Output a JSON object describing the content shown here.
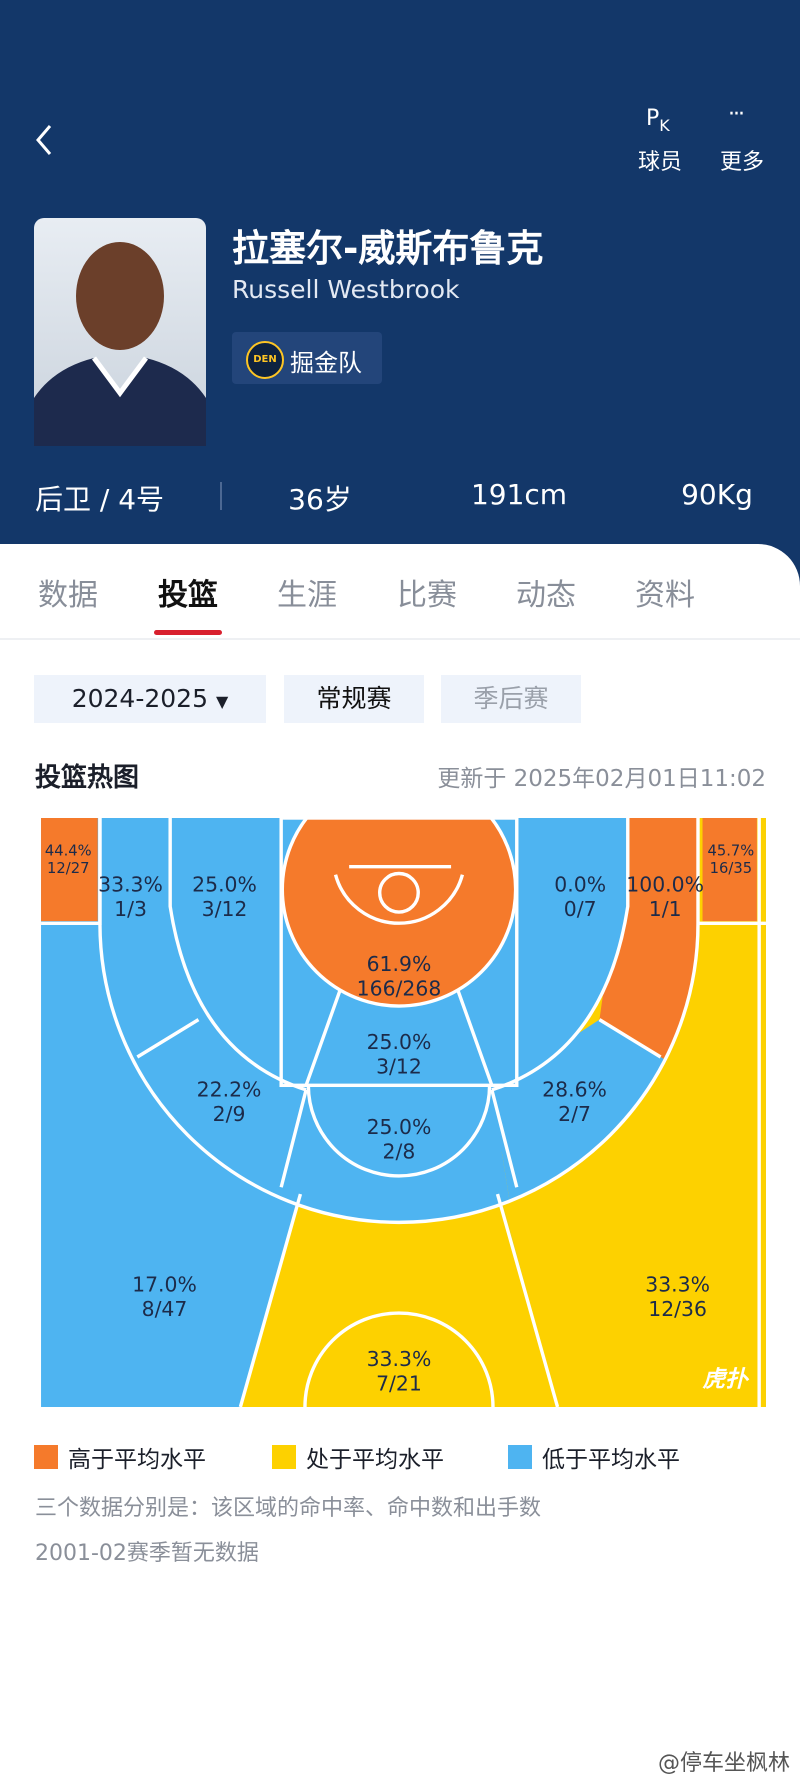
{
  "header": {
    "actions": [
      {
        "icon": [
          "P",
          "K"
        ],
        "label": "球员"
      },
      {
        "icon": "···",
        "label": "更多"
      }
    ]
  },
  "player": {
    "name_cn": "拉塞尔-威斯布鲁克",
    "name_en": "Russell Westbrook",
    "team": "掘金队",
    "team_logo": "DEN",
    "stats": [
      "后卫 / 4号",
      "36岁",
      "191cm",
      "90Kg"
    ]
  },
  "tabs": {
    "items": [
      "数据",
      "投篮",
      "生涯",
      "比赛",
      "动态",
      "资料"
    ],
    "active": 1
  },
  "filters": {
    "season": "2024-2025",
    "types": [
      "常规赛",
      "季后赛"
    ],
    "active_type": 0
  },
  "heatmap": {
    "title": "投篮热图",
    "updated": "更新于 2025年02月01日11:02",
    "court_watermark": "虎扑",
    "zones": [
      {
        "pct": "44.4%",
        "shots": "12/27",
        "color": "#f57a2b"
      },
      {
        "pct": "33.3%",
        "shots": "1/3",
        "color": "#4eb4f1"
      },
      {
        "pct": "25.0%",
        "shots": "3/12",
        "color": "#4eb4f1"
      },
      {
        "pct": "61.9%",
        "shots": "166/268",
        "color": "#f57a2b"
      },
      {
        "pct": "0.0%",
        "shots": "0/7",
        "color": "#4eb4f1"
      },
      {
        "pct": "100.0%",
        "shots": "1/1",
        "color": "#f57a2b"
      },
      {
        "pct": "45.7%",
        "shots": "16/35",
        "color": "#f57a2b"
      },
      {
        "pct": "25.0%",
        "shots": "3/12",
        "color": "#4eb4f1"
      },
      {
        "pct": "22.2%",
        "shots": "2/9",
        "color": "#4eb4f1"
      },
      {
        "pct": "28.6%",
        "shots": "2/7",
        "color": "#4eb4f1"
      },
      {
        "pct": "25.0%",
        "shots": "2/8",
        "color": "#4eb4f1"
      },
      {
        "pct": "17.0%",
        "shots": "8/47",
        "color": "#4eb4f1"
      },
      {
        "pct": "33.3%",
        "shots": "12/36",
        "color": "#fdd100"
      },
      {
        "pct": "33.3%",
        "shots": "7/21",
        "color": "#fdd100"
      }
    ],
    "legend": [
      {
        "label": "高于平均水平",
        "color": "#f57a2b"
      },
      {
        "label": "处于平均水平",
        "color": "#fdd100"
      },
      {
        "label": "低于平均水平",
        "color": "#4eb4f1"
      }
    ],
    "note": "三个数据分别是：该区域的命中率、命中数和出手数",
    "no_data": "2001-02赛季暂无数据"
  },
  "watermark": "@停车坐枫林"
}
